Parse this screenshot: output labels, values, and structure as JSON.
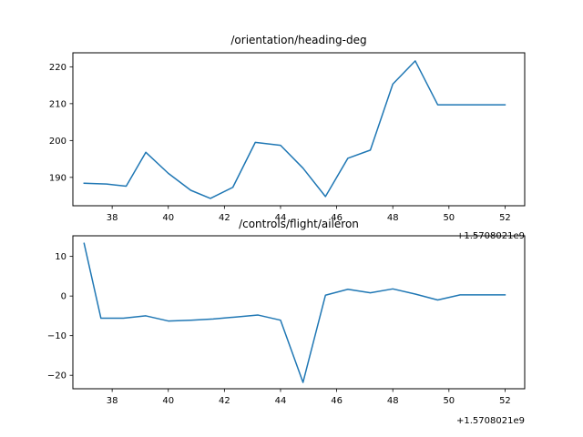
{
  "figure": {
    "background": "#ffffff",
    "line_color": "#1f77b4"
  },
  "chart_data": [
    {
      "type": "line",
      "title": "/orientation/heading-deg",
      "xlabel": "",
      "ylabel": "",
      "x_offset_label": "+1.5708021e9",
      "xlim": [
        36.6,
        52.7
      ],
      "ylim": [
        182.3,
        223.8
      ],
      "xticks": [
        38,
        40,
        42,
        44,
        46,
        48,
        50,
        52
      ],
      "yticks": [
        190,
        200,
        210,
        220
      ],
      "grid": false,
      "series": [
        {
          "x": [
            37.0,
            37.8,
            38.5,
            39.2,
            40.0,
            40.8,
            41.5,
            42.3,
            43.1,
            44.0,
            44.8,
            45.6,
            46.4,
            47.2,
            48.0,
            48.8,
            49.6,
            50.4,
            51.2,
            52.0
          ],
          "values": [
            188.4,
            188.2,
            187.6,
            196.8,
            191.1,
            186.5,
            184.3,
            187.3,
            199.5,
            198.7,
            192.5,
            184.8,
            195.2,
            197.4,
            215.3,
            221.6,
            209.7,
            209.7,
            209.7,
            209.7
          ]
        }
      ]
    },
    {
      "type": "line",
      "title": "/controls/flight/aileron",
      "xlabel": "",
      "ylabel": "",
      "x_offset_label": "+1.5708021e9",
      "xlim": [
        36.6,
        52.7
      ],
      "ylim": [
        -23.4,
        15.2
      ],
      "xticks": [
        38,
        40,
        42,
        44,
        46,
        48,
        50,
        52
      ],
      "yticks": [
        10,
        0,
        -10,
        -20
      ],
      "ytick_labels": [
        "10",
        "0",
        "−10",
        "−20"
      ],
      "grid": false,
      "series": [
        {
          "x": [
            37.0,
            37.6,
            38.4,
            39.2,
            40.0,
            40.8,
            41.6,
            42.4,
            43.2,
            44.0,
            44.8,
            45.6,
            46.4,
            47.2,
            48.0,
            48.8,
            49.6,
            50.4,
            51.2,
            52.0
          ],
          "values": [
            13.3,
            -5.6,
            -5.6,
            -5.0,
            -6.3,
            -6.1,
            -5.8,
            -5.3,
            -4.8,
            -6.1,
            -21.8,
            0.2,
            1.7,
            0.8,
            1.8,
            0.5,
            -1.0,
            0.3,
            0.3,
            0.3
          ]
        }
      ]
    }
  ]
}
